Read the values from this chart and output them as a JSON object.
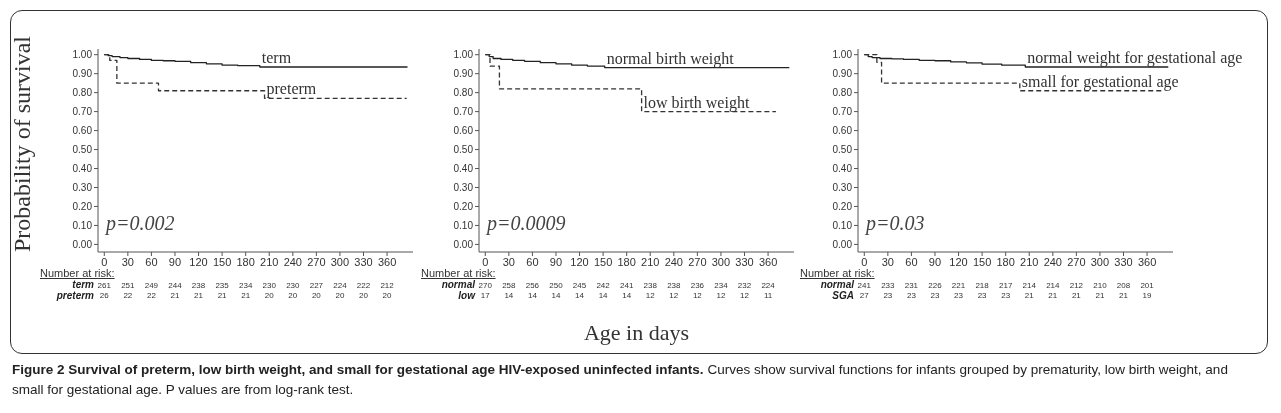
{
  "chart_data": [
    {
      "type": "step",
      "title": "Figure 2 Survival of preterm, low birth weight, and small for gestational age HIV-exposed uninfected infants.",
      "subtitle": "Curves show survival functions for infants grouped by prematurity, low birth weight, and small for gestational age. P values are from log-rank test.",
      "ylabel": "Probability of survival",
      "marker": "none",
      "xlim": [
        -8,
        393
      ],
      "xticks": [
        0,
        30,
        60,
        90,
        120,
        150,
        180,
        210,
        240,
        270,
        300,
        330,
        360
      ],
      "ylim": [
        -0.04,
        1.03
      ],
      "yticks": [
        {
          "value": 0,
          "label": "0.00"
        },
        {
          "value": 0.1,
          "label": "0.10"
        },
        {
          "value": 0.2,
          "label": "0.20"
        },
        {
          "value": 0.3,
          "label": "0.30"
        },
        {
          "value": 0.4,
          "label": "0.40"
        },
        {
          "value": 0.5,
          "label": "0.50"
        },
        {
          "value": 0.6,
          "label": "0.60"
        },
        {
          "value": 0.7,
          "label": "0.70"
        },
        {
          "value": 0.8,
          "label": "0.80"
        },
        {
          "value": 0.9,
          "label": "0.90"
        },
        {
          "value": 1,
          "label": "1.00"
        }
      ],
      "series": [
        {
          "name": "term",
          "color": "#222222",
          "line_style": "solid",
          "x": [
            0,
            5,
            10,
            20,
            30,
            45,
            60,
            75,
            90,
            110,
            130,
            150,
            170,
            198,
            386
          ],
          "values": [
            1,
            0.995,
            0.99,
            0.985,
            0.98,
            0.975,
            0.97,
            0.968,
            0.965,
            0.958,
            0.952,
            0.945,
            0.942,
            0.935,
            0.935
          ]
        },
        {
          "name": "preterm",
          "color": "#333333",
          "line_style": "dashed",
          "x": [
            0,
            7,
            16,
            69,
            204,
            385
          ],
          "values": [
            1,
            0.97,
            0.85,
            0.81,
            0.77,
            0.77
          ]
        }
      ],
      "annotations": [
        "p=0.002",
        "Number at risk:",
        "term",
        "261",
        "251",
        "249",
        "244",
        "238",
        "235",
        "234",
        "230",
        "230",
        "227",
        "224",
        "222",
        "212",
        "preterm",
        "26",
        "22",
        "22",
        "21",
        "21",
        "21",
        "21",
        "20",
        "20",
        "20",
        "20",
        "20",
        "20"
      ]
    },
    {
      "type": "step",
      "xlabel": "Age in days",
      "marker": "none",
      "xlim": [
        -8,
        393
      ],
      "xticks": [
        0,
        30,
        60,
        90,
        120,
        150,
        180,
        210,
        240,
        270,
        300,
        330,
        360
      ],
      "ylim": [
        -0.04,
        1.03
      ],
      "yticks": [
        {
          "value": 0,
          "label": "0.00"
        },
        {
          "value": 0.1,
          "label": "0.10"
        },
        {
          "value": 0.2,
          "label": "0.20"
        },
        {
          "value": 0.3,
          "label": "0.30"
        },
        {
          "value": 0.4,
          "label": "0.40"
        },
        {
          "value": 0.5,
          "label": "0.50"
        },
        {
          "value": 0.6,
          "label": "0.60"
        },
        {
          "value": 0.7,
          "label": "0.70"
        },
        {
          "value": 0.8,
          "label": "0.80"
        },
        {
          "value": 0.9,
          "label": "0.90"
        },
        {
          "value": 1,
          "label": "1.00"
        }
      ],
      "series": [
        {
          "name": "normal birth weight",
          "color": "#222222",
          "line_style": "solid",
          "x": [
            0,
            5,
            10,
            20,
            35,
            50,
            70,
            90,
            110,
            130,
            152,
            387
          ],
          "values": [
            1,
            0.99,
            0.98,
            0.975,
            0.97,
            0.965,
            0.958,
            0.952,
            0.945,
            0.94,
            0.932,
            0.932
          ]
        },
        {
          "name": "low birth weight",
          "color": "#333333",
          "line_style": "dashed",
          "x": [
            0,
            6,
            18,
            199,
            370
          ],
          "values": [
            1,
            0.94,
            0.82,
            0.7,
            0.7
          ]
        }
      ],
      "annotations": [
        "p=0.0009",
        "Number at risk:",
        "normal",
        "270",
        "258",
        "256",
        "250",
        "245",
        "242",
        "241",
        "238",
        "238",
        "236",
        "234",
        "232",
        "224",
        "low",
        "17",
        "14",
        "14",
        "14",
        "14",
        "14",
        "14",
        "12",
        "12",
        "12",
        "12",
        "12",
        "11"
      ]
    },
    {
      "type": "step",
      "marker": "none",
      "xlim": [
        -8,
        393
      ],
      "xticks": [
        0,
        30,
        60,
        90,
        120,
        150,
        180,
        210,
        240,
        270,
        300,
        330,
        360
      ],
      "ylim": [
        -0.04,
        1.03
      ],
      "yticks": [
        {
          "value": 0,
          "label": "0.00"
        },
        {
          "value": 0.1,
          "label": "0.10"
        },
        {
          "value": 0.2,
          "label": "0.20"
        },
        {
          "value": 0.3,
          "label": "0.30"
        },
        {
          "value": 0.4,
          "label": "0.40"
        },
        {
          "value": 0.5,
          "label": "0.50"
        },
        {
          "value": 0.6,
          "label": "0.60"
        },
        {
          "value": 0.7,
          "label": "0.70"
        },
        {
          "value": 0.8,
          "label": "0.80"
        },
        {
          "value": 0.9,
          "label": "0.90"
        },
        {
          "value": 1,
          "label": "1.00"
        }
      ],
      "series": [
        {
          "name": "normal weight for gestational age",
          "color": "#222222",
          "line_style": "solid",
          "x": [
            0,
            5,
            10,
            20,
            35,
            50,
            70,
            90,
            110,
            130,
            150,
            175,
            205,
            387
          ],
          "values": [
            1,
            0.99,
            0.985,
            0.98,
            0.978,
            0.975,
            0.97,
            0.968,
            0.962,
            0.957,
            0.95,
            0.945,
            0.935,
            0.935
          ]
        },
        {
          "name": "small for gestational age",
          "color": "#333333",
          "line_style": "dashed",
          "x": [
            0,
            16,
            22,
            198,
            380
          ],
          "values": [
            1,
            0.96,
            0.85,
            0.81,
            0.81
          ]
        }
      ],
      "annotations": [
        "p=0.03",
        "Number at risk:",
        "normal",
        "241",
        "233",
        "231",
        "226",
        "221",
        "218",
        "217",
        "214",
        "214",
        "212",
        "210",
        "208",
        "201",
        "SGA",
        "27",
        "23",
        "23",
        "23",
        "23",
        "23",
        "23",
        "21",
        "21",
        "21",
        "21",
        "21",
        "19"
      ]
    }
  ]
}
